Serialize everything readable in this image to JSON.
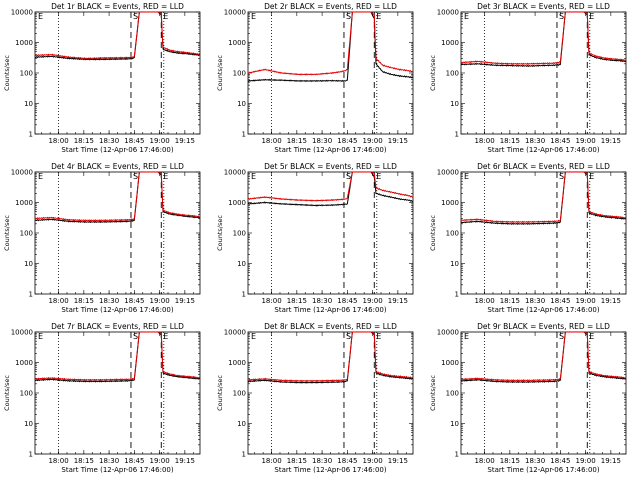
{
  "chart_data": [
    {
      "type": "line",
      "title": "Det 1r BLACK = Events, RED = LLD",
      "xlabel": "Start Time (12-Apr-06 17:46:00)",
      "ylabel": "Counts/sec",
      "yscale": "log",
      "ylim": [
        1,
        10000
      ],
      "xlim_minutes": [
        0,
        98
      ],
      "xticks": [
        "18:00",
        "18:15",
        "18:30",
        "18:45",
        "19:00",
        "19:15"
      ],
      "yticks": [
        "1",
        "10",
        "100",
        "1000",
        "10000"
      ],
      "markers": [
        "E",
        "S",
        "E"
      ],
      "series": [
        {
          "name": "Events",
          "color": "#000000",
          "x": [
            0,
            10,
            20,
            30,
            40,
            55,
            58,
            59,
            62,
            66,
            68,
            73,
            75,
            76,
            80,
            85,
            90,
            95,
            98
          ],
          "y": [
            330,
            350,
            300,
            280,
            280,
            290,
            300,
            320,
            10000,
            10000,
            10000,
            10000,
            8000,
            600,
            500,
            450,
            430,
            400,
            380
          ]
        },
        {
          "name": "LLD",
          "color": "#e00000",
          "x": [
            0,
            10,
            20,
            30,
            40,
            55,
            58,
            59,
            62,
            66,
            68,
            73,
            75,
            76,
            80,
            85,
            90,
            95,
            98
          ],
          "y": [
            380,
            400,
            330,
            300,
            310,
            320,
            330,
            350,
            10000,
            10000,
            10000,
            10000,
            9000,
            700,
            560,
            500,
            470,
            430,
            410
          ]
        }
      ]
    },
    {
      "type": "line",
      "title": "Det 2r BLACK = Events, RED = LLD",
      "xlabel": "Start Time (12-Apr-06 17:46:00)",
      "ylabel": "Counts/sec",
      "yscale": "log",
      "ylim": [
        1,
        10000
      ],
      "xlim_minutes": [
        0,
        98
      ],
      "xticks": [
        "18:00",
        "18:15",
        "18:30",
        "18:45",
        "19:00",
        "19:15"
      ],
      "yticks": [
        "1",
        "10",
        "100",
        "1000",
        "10000"
      ],
      "markers": [
        "E",
        "S",
        "E"
      ],
      "series": [
        {
          "name": "Events",
          "color": "#000000",
          "x": [
            0,
            10,
            20,
            30,
            40,
            50,
            55,
            58,
            59,
            62,
            66,
            70,
            73,
            75,
            76,
            80,
            85,
            90,
            95,
            98
          ],
          "y": [
            55,
            60,
            58,
            55,
            55,
            56,
            55,
            55,
            58,
            10000,
            10000,
            10000,
            10000,
            6000,
            200,
            110,
            90,
            80,
            75,
            70
          ]
        },
        {
          "name": "LLD",
          "color": "#e00000",
          "x": [
            0,
            10,
            20,
            30,
            40,
            50,
            55,
            58,
            59,
            62,
            66,
            70,
            73,
            75,
            76,
            80,
            85,
            90,
            95,
            98
          ],
          "y": [
            100,
            130,
            100,
            90,
            90,
            100,
            110,
            120,
            130,
            10000,
            10000,
            10000,
            10000,
            8000,
            300,
            180,
            150,
            130,
            120,
            110
          ]
        }
      ]
    },
    {
      "type": "line",
      "title": "Det 3r BLACK = Events, RED = LLD",
      "xlabel": "Start Time (12-Apr-06 17:46:00)",
      "ylabel": "Counts/sec",
      "yscale": "log",
      "ylim": [
        1,
        10000
      ],
      "xlim_minutes": [
        0,
        98
      ],
      "xticks": [
        "18:00",
        "18:15",
        "18:30",
        "18:45",
        "19:00",
        "19:15"
      ],
      "yticks": [
        "1",
        "10",
        "100",
        "1000",
        "10000"
      ],
      "markers": [
        "E",
        "S",
        "E"
      ],
      "series": [
        {
          "name": "Events",
          "color": "#000000",
          "x": [
            0,
            10,
            20,
            30,
            40,
            55,
            58,
            59,
            62,
            66,
            70,
            73,
            75,
            76,
            80,
            85,
            90,
            95,
            98
          ],
          "y": [
            190,
            200,
            180,
            175,
            170,
            180,
            185,
            190,
            10000,
            10000,
            10000,
            10000,
            8000,
            400,
            320,
            280,
            260,
            250,
            240
          ]
        },
        {
          "name": "LLD",
          "color": "#e00000",
          "x": [
            0,
            10,
            20,
            30,
            40,
            55,
            58,
            59,
            62,
            66,
            70,
            73,
            75,
            76,
            80,
            85,
            90,
            95,
            98
          ],
          "y": [
            220,
            240,
            210,
            200,
            200,
            210,
            220,
            230,
            10000,
            10000,
            10000,
            10000,
            9000,
            450,
            360,
            310,
            290,
            275,
            260
          ]
        }
      ]
    },
    {
      "type": "line",
      "title": "Det 4r BLACK = Events, RED = LLD",
      "xlabel": "Start Time (12-Apr-06 17:46:00)",
      "ylabel": "Counts/sec",
      "yscale": "log",
      "ylim": [
        1,
        10000
      ],
      "xlim_minutes": [
        0,
        98
      ],
      "xticks": [
        "18:00",
        "18:15",
        "18:30",
        "18:45",
        "19:00",
        "19:15"
      ],
      "yticks": [
        "1",
        "10",
        "100",
        "1000",
        "10000"
      ],
      "markers": [
        "E",
        "S",
        "E"
      ],
      "series": [
        {
          "name": "Events",
          "color": "#000000",
          "x": [
            0,
            10,
            20,
            30,
            40,
            55,
            58,
            59,
            62,
            66,
            70,
            73,
            75,
            76,
            80,
            85,
            90,
            95,
            98
          ],
          "y": [
            260,
            280,
            240,
            230,
            230,
            240,
            250,
            260,
            10000,
            10000,
            10000,
            10000,
            8000,
            500,
            420,
            380,
            350,
            330,
            320
          ]
        },
        {
          "name": "LLD",
          "color": "#e00000",
          "x": [
            0,
            10,
            20,
            30,
            40,
            55,
            58,
            59,
            62,
            66,
            70,
            73,
            75,
            76,
            80,
            85,
            90,
            95,
            98
          ],
          "y": [
            300,
            320,
            270,
            260,
            260,
            270,
            280,
            290,
            10000,
            10000,
            10000,
            10000,
            9000,
            560,
            460,
            410,
            380,
            360,
            340
          ]
        }
      ]
    },
    {
      "type": "line",
      "title": "Det 5r BLACK = Events, RED = LLD",
      "xlabel": "Start Time (12-Apr-06 17:46:00)",
      "ylabel": "Counts/sec",
      "yscale": "log",
      "ylim": [
        1,
        10000
      ],
      "xlim_minutes": [
        0,
        98
      ],
      "xticks": [
        "18:00",
        "18:15",
        "18:30",
        "18:45",
        "19:00",
        "19:15"
      ],
      "yticks": [
        "1",
        "10",
        "100",
        "1000",
        "10000"
      ],
      "markers": [
        "E",
        "S",
        "E"
      ],
      "series": [
        {
          "name": "Events",
          "color": "#000000",
          "x": [
            0,
            10,
            20,
            30,
            40,
            50,
            55,
            58,
            59,
            62,
            66,
            70,
            73,
            75,
            76,
            80,
            85,
            90,
            95,
            98
          ],
          "y": [
            900,
            1000,
            900,
            850,
            800,
            820,
            850,
            880,
            900,
            10000,
            10000,
            10000,
            10000,
            7000,
            2000,
            1700,
            1500,
            1300,
            1200,
            1100
          ]
        },
        {
          "name": "LLD",
          "color": "#e00000",
          "x": [
            0,
            10,
            20,
            30,
            40,
            50,
            55,
            58,
            59,
            62,
            66,
            70,
            73,
            75,
            76,
            80,
            85,
            90,
            95,
            98
          ],
          "y": [
            1300,
            1500,
            1300,
            1200,
            1150,
            1200,
            1250,
            1300,
            1400,
            10000,
            10000,
            10000,
            10000,
            9000,
            3000,
            2500,
            2200,
            1900,
            1700,
            1500
          ]
        }
      ]
    },
    {
      "type": "line",
      "title": "Det 6r BLACK = Events, RED = LLD",
      "xlabel": "Start Time (12-Apr-06 17:46:00)",
      "ylabel": "Counts/sec",
      "yscale": "log",
      "ylim": [
        1,
        10000
      ],
      "xlim_minutes": [
        0,
        98
      ],
      "xticks": [
        "18:00",
        "18:15",
        "18:30",
        "18:45",
        "19:00",
        "19:15"
      ],
      "yticks": [
        "1",
        "10",
        "100",
        "1000",
        "10000"
      ],
      "markers": [
        "E",
        "S",
        "E"
      ],
      "series": [
        {
          "name": "Events",
          "color": "#000000",
          "x": [
            0,
            10,
            20,
            30,
            40,
            55,
            58,
            59,
            62,
            66,
            70,
            73,
            75,
            76,
            80,
            85,
            90,
            95,
            98
          ],
          "y": [
            220,
            240,
            210,
            200,
            200,
            210,
            220,
            230,
            10000,
            10000,
            10000,
            10000,
            8000,
            450,
            380,
            340,
            320,
            300,
            290
          ]
        },
        {
          "name": "LLD",
          "color": "#e00000",
          "x": [
            0,
            10,
            20,
            30,
            40,
            55,
            58,
            59,
            62,
            66,
            70,
            73,
            75,
            76,
            80,
            85,
            90,
            95,
            98
          ],
          "y": [
            260,
            280,
            240,
            230,
            230,
            240,
            250,
            260,
            10000,
            10000,
            10000,
            10000,
            9000,
            500,
            420,
            370,
            350,
            330,
            310
          ]
        }
      ]
    },
    {
      "type": "line",
      "title": "Det 7r BLACK = Events, RED = LLD",
      "xlabel": "Start Time (12-Apr-06 17:46:00)",
      "ylabel": "Counts/sec",
      "yscale": "log",
      "ylim": [
        1,
        10000
      ],
      "xlim_minutes": [
        0,
        98
      ],
      "xticks": [
        "18:00",
        "18:15",
        "18:30",
        "18:45",
        "19:00",
        "19:15"
      ],
      "yticks": [
        "1",
        "10",
        "100",
        "1000",
        "10000"
      ],
      "markers": [
        "E",
        "S",
        "E"
      ],
      "series": [
        {
          "name": "Events",
          "color": "#000000",
          "x": [
            0,
            10,
            20,
            30,
            40,
            55,
            58,
            59,
            62,
            66,
            70,
            73,
            75,
            76,
            80,
            85,
            90,
            95,
            98
          ],
          "y": [
            260,
            280,
            250,
            240,
            240,
            250,
            260,
            270,
            10000,
            10000,
            10000,
            10000,
            8000,
            450,
            380,
            340,
            320,
            300,
            290
          ]
        },
        {
          "name": "LLD",
          "color": "#e00000",
          "x": [
            0,
            10,
            20,
            30,
            40,
            55,
            58,
            59,
            62,
            66,
            70,
            73,
            75,
            76,
            80,
            85,
            90,
            95,
            98
          ],
          "y": [
            290,
            310,
            280,
            270,
            270,
            280,
            290,
            300,
            10000,
            10000,
            10000,
            10000,
            9000,
            500,
            420,
            370,
            350,
            330,
            310
          ]
        }
      ]
    },
    {
      "type": "line",
      "title": "Det 8r BLACK = Events, RED = LLD",
      "xlabel": "Start Time (12-Apr-06 17:46:00)",
      "ylabel": "Counts/sec",
      "yscale": "log",
      "ylim": [
        1,
        10000
      ],
      "xlim_minutes": [
        0,
        98
      ],
      "xticks": [
        "18:00",
        "18:15",
        "18:30",
        "18:45",
        "19:00",
        "19:15"
      ],
      "yticks": [
        "1",
        "10",
        "100",
        "1000",
        "10000"
      ],
      "markers": [
        "E",
        "S",
        "E"
      ],
      "series": [
        {
          "name": "Events",
          "color": "#000000",
          "x": [
            0,
            10,
            20,
            30,
            40,
            55,
            58,
            59,
            62,
            66,
            70,
            73,
            75,
            76,
            80,
            85,
            90,
            95,
            98
          ],
          "y": [
            240,
            260,
            230,
            220,
            220,
            230,
            240,
            250,
            10000,
            10000,
            10000,
            10000,
            8000,
            450,
            380,
            340,
            320,
            300,
            290
          ]
        },
        {
          "name": "LLD",
          "color": "#e00000",
          "x": [
            0,
            10,
            20,
            30,
            40,
            55,
            58,
            59,
            62,
            66,
            70,
            73,
            75,
            76,
            80,
            85,
            90,
            95,
            98
          ],
          "y": [
            270,
            290,
            260,
            250,
            250,
            260,
            270,
            280,
            10000,
            10000,
            10000,
            10000,
            9000,
            500,
            420,
            370,
            350,
            330,
            310
          ]
        }
      ]
    },
    {
      "type": "line",
      "title": "Det 9r BLACK = Events, RED = LLD",
      "xlabel": "Start Time (12-Apr-06 17:46:00)",
      "ylabel": "Counts/sec",
      "yscale": "log",
      "ylim": [
        1,
        10000
      ],
      "xlim_minutes": [
        0,
        98
      ],
      "xticks": [
        "18:00",
        "18:15",
        "18:30",
        "18:45",
        "19:00",
        "19:15"
      ],
      "yticks": [
        "1",
        "10",
        "100",
        "1000",
        "10000"
      ],
      "markers": [
        "E",
        "S",
        "E"
      ],
      "series": [
        {
          "name": "Events",
          "color": "#000000",
          "x": [
            0,
            10,
            20,
            30,
            40,
            55,
            58,
            59,
            62,
            66,
            70,
            73,
            75,
            76,
            80,
            85,
            90,
            95,
            98
          ],
          "y": [
            250,
            270,
            240,
            230,
            230,
            240,
            250,
            260,
            10000,
            10000,
            10000,
            10000,
            8000,
            450,
            380,
            340,
            320,
            300,
            290
          ]
        },
        {
          "name": "LLD",
          "color": "#e00000",
          "x": [
            0,
            10,
            20,
            30,
            40,
            55,
            58,
            59,
            62,
            66,
            70,
            73,
            75,
            76,
            80,
            85,
            90,
            95,
            98
          ],
          "y": [
            280,
            300,
            270,
            260,
            260,
            270,
            280,
            290,
            10000,
            10000,
            10000,
            10000,
            9000,
            500,
            420,
            370,
            350,
            330,
            310
          ]
        }
      ]
    }
  ]
}
